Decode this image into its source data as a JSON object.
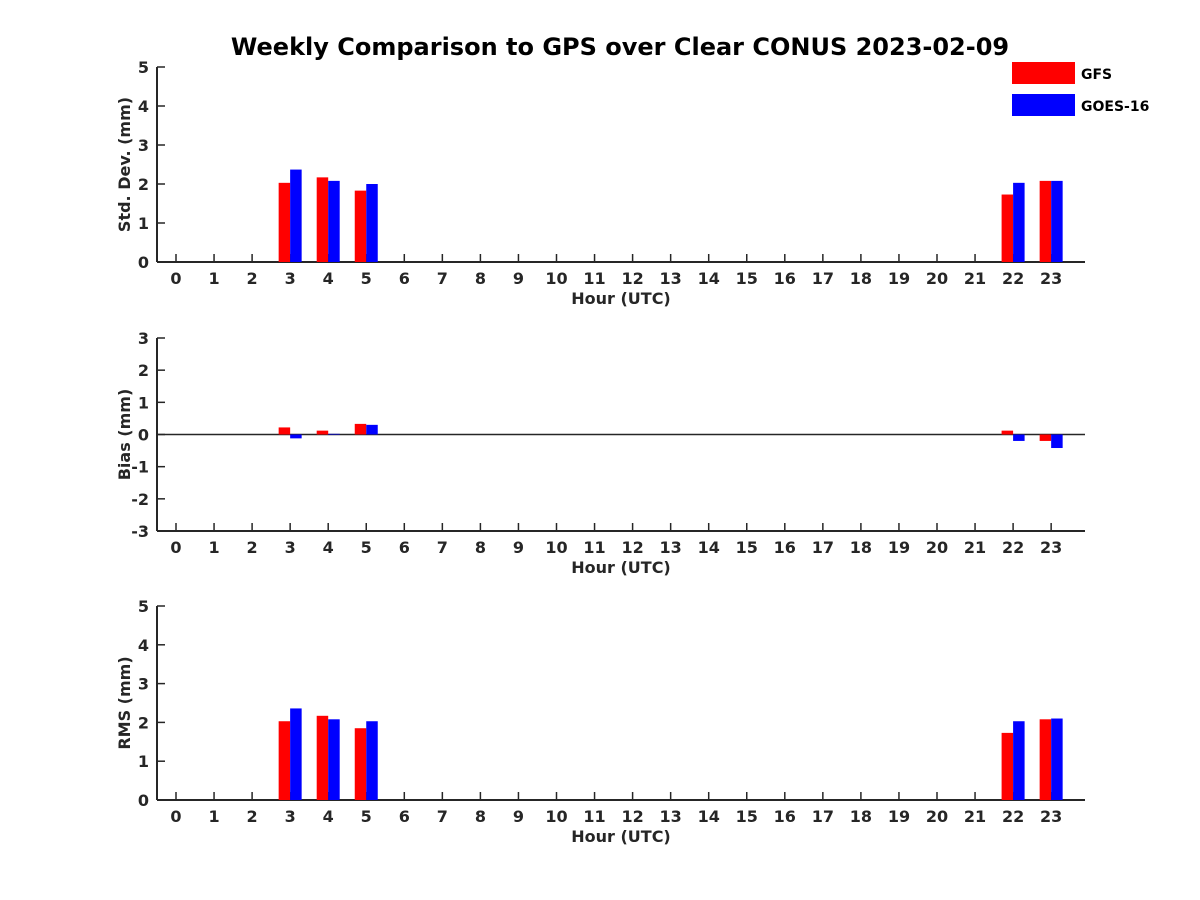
{
  "chart_data": {
    "title": "Weekly Comparison to GPS over Clear CONUS 2023-02-09",
    "legend": {
      "placement": "top-right",
      "entries": [
        {
          "name": "GFS",
          "color": "#ff0000"
        },
        {
          "name": "GOES-16",
          "color": "#0000ff"
        }
      ]
    },
    "series_colors": {
      "GFS": "#ff0000",
      "GOES-16": "#0000ff"
    },
    "panels": [
      {
        "type": "bar",
        "id": "stddev",
        "ylabel": "Std. Dev. (mm)",
        "xlabel": "Hour (UTC)",
        "ylim": [
          0,
          5
        ],
        "yticks": [
          "0",
          "1",
          "2",
          "3",
          "4",
          "5"
        ],
        "categories": [
          "0",
          "1",
          "2",
          "3",
          "4",
          "5",
          "6",
          "7",
          "8",
          "9",
          "10",
          "11",
          "12",
          "13",
          "14",
          "15",
          "16",
          "17",
          "18",
          "19",
          "20",
          "21",
          "22",
          "23"
        ],
        "series": [
          {
            "name": "GFS",
            "values": [
              null,
              null,
              null,
              2.03,
              2.17,
              1.83,
              null,
              null,
              null,
              null,
              null,
              null,
              null,
              null,
              null,
              null,
              null,
              null,
              null,
              null,
              null,
              null,
              1.73,
              2.08
            ]
          },
          {
            "name": "GOES-16",
            "values": [
              null,
              null,
              null,
              2.37,
              2.08,
              2.0,
              null,
              null,
              null,
              null,
              null,
              null,
              null,
              null,
              null,
              null,
              null,
              null,
              null,
              null,
              null,
              null,
              2.03,
              2.08
            ]
          }
        ]
      },
      {
        "type": "bar",
        "id": "bias",
        "ylabel": "Bias (mm)",
        "xlabel": "Hour (UTC)",
        "ylim": [
          -3,
          3
        ],
        "yticks": [
          "-3",
          "-2",
          "-1",
          "0",
          "1",
          "2",
          "3"
        ],
        "zero_line": true,
        "categories": [
          "0",
          "1",
          "2",
          "3",
          "4",
          "5",
          "6",
          "7",
          "8",
          "9",
          "10",
          "11",
          "12",
          "13",
          "14",
          "15",
          "16",
          "17",
          "18",
          "19",
          "20",
          "21",
          "22",
          "23"
        ],
        "series": [
          {
            "name": "GFS",
            "values": [
              null,
              null,
              null,
              0.22,
              0.12,
              0.33,
              null,
              null,
              null,
              null,
              null,
              null,
              null,
              null,
              null,
              null,
              null,
              null,
              null,
              null,
              null,
              null,
              0.12,
              -0.2
            ]
          },
          {
            "name": "GOES-16",
            "values": [
              null,
              null,
              null,
              -0.12,
              0.02,
              0.3,
              null,
              null,
              null,
              null,
              null,
              null,
              null,
              null,
              null,
              null,
              null,
              null,
              null,
              null,
              null,
              null,
              -0.2,
              -0.42
            ]
          }
        ]
      },
      {
        "type": "bar",
        "id": "rms",
        "ylabel": "RMS (mm)",
        "xlabel": "Hour (UTC)",
        "ylim": [
          0,
          5
        ],
        "yticks": [
          "0",
          "1",
          "2",
          "3",
          "4",
          "5"
        ],
        "categories": [
          "0",
          "1",
          "2",
          "3",
          "4",
          "5",
          "6",
          "7",
          "8",
          "9",
          "10",
          "11",
          "12",
          "13",
          "14",
          "15",
          "16",
          "17",
          "18",
          "19",
          "20",
          "21",
          "22",
          "23"
        ],
        "series": [
          {
            "name": "GFS",
            "values": [
              null,
              null,
              null,
              2.03,
              2.17,
              1.85,
              null,
              null,
              null,
              null,
              null,
              null,
              null,
              null,
              null,
              null,
              null,
              null,
              null,
              null,
              null,
              null,
              1.73,
              2.08
            ]
          },
          {
            "name": "GOES-16",
            "values": [
              null,
              null,
              null,
              2.36,
              2.08,
              2.03,
              null,
              null,
              null,
              null,
              null,
              null,
              null,
              null,
              null,
              null,
              null,
              null,
              null,
              null,
              null,
              null,
              2.03,
              2.1
            ]
          }
        ]
      }
    ]
  }
}
